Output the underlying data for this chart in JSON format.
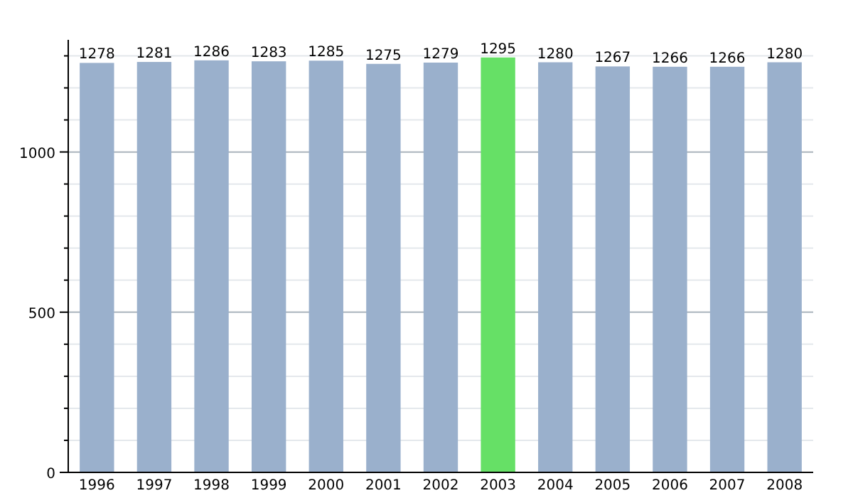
{
  "chart_data": {
    "type": "bar",
    "categories": [
      "1996",
      "1997",
      "1998",
      "1999",
      "2000",
      "2001",
      "2002",
      "2003",
      "2004",
      "2005",
      "2006",
      "2007",
      "2008"
    ],
    "values": [
      1278,
      1281,
      1286,
      1283,
      1285,
      1275,
      1279,
      1295,
      1280,
      1267,
      1266,
      1266,
      1280
    ],
    "colors": [
      "#9ab0cc",
      "#9ab0cc",
      "#9ab0cc",
      "#9ab0cc",
      "#9ab0cc",
      "#9ab0cc",
      "#9ab0cc",
      "#66e066",
      "#9ab0cc",
      "#9ab0cc",
      "#9ab0cc",
      "#9ab0cc",
      "#9ab0cc"
    ],
    "ylim": [
      0,
      1350
    ],
    "yticks": [
      0,
      {
        "value": 100,
        "label": null
      },
      {
        "value": 200,
        "label": null
      },
      {
        "value": 300,
        "label": null
      },
      {
        "value": 400,
        "label": null
      },
      500,
      {
        "value": 600,
        "label": null
      },
      {
        "value": 700,
        "label": null
      },
      {
        "value": 800,
        "label": null
      },
      {
        "value": 900,
        "label": null
      },
      1000,
      {
        "value": 1100,
        "label": null
      },
      {
        "value": 1200,
        "label": null
      },
      {
        "value": 1300,
        "label": null
      }
    ],
    "grid": "y",
    "data_labels": true
  }
}
